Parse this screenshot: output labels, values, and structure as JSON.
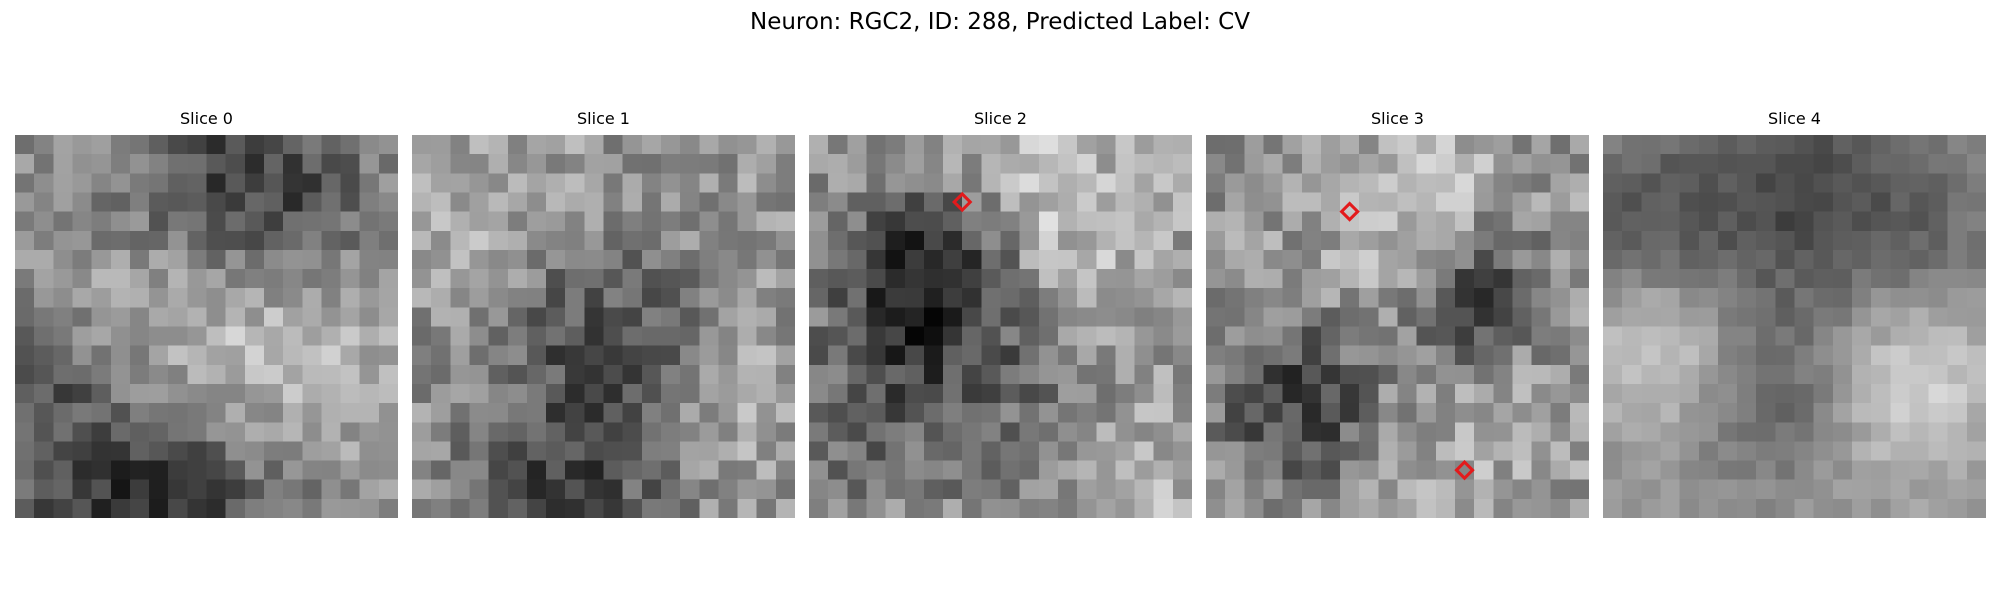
{
  "figure": {
    "title": "Neuron: RGC2, ID: 288, Predicted Label: CV"
  },
  "colors": {
    "marker": "#e31a1c",
    "background": "#ffffff",
    "colormap": "gray"
  },
  "slices": [
    {
      "title": "Slice 0",
      "markers": []
    },
    {
      "title": "Slice 1",
      "markers": []
    },
    {
      "title": "Slice 2",
      "markers": [
        {
          "col": 8,
          "row": 3.5
        }
      ]
    },
    {
      "title": "Slice 3",
      "markers": [
        {
          "col": 7.5,
          "row": 4
        },
        {
          "col": 13.5,
          "row": 17.5
        }
      ]
    },
    {
      "title": "Slice 4",
      "markers": []
    }
  ]
}
